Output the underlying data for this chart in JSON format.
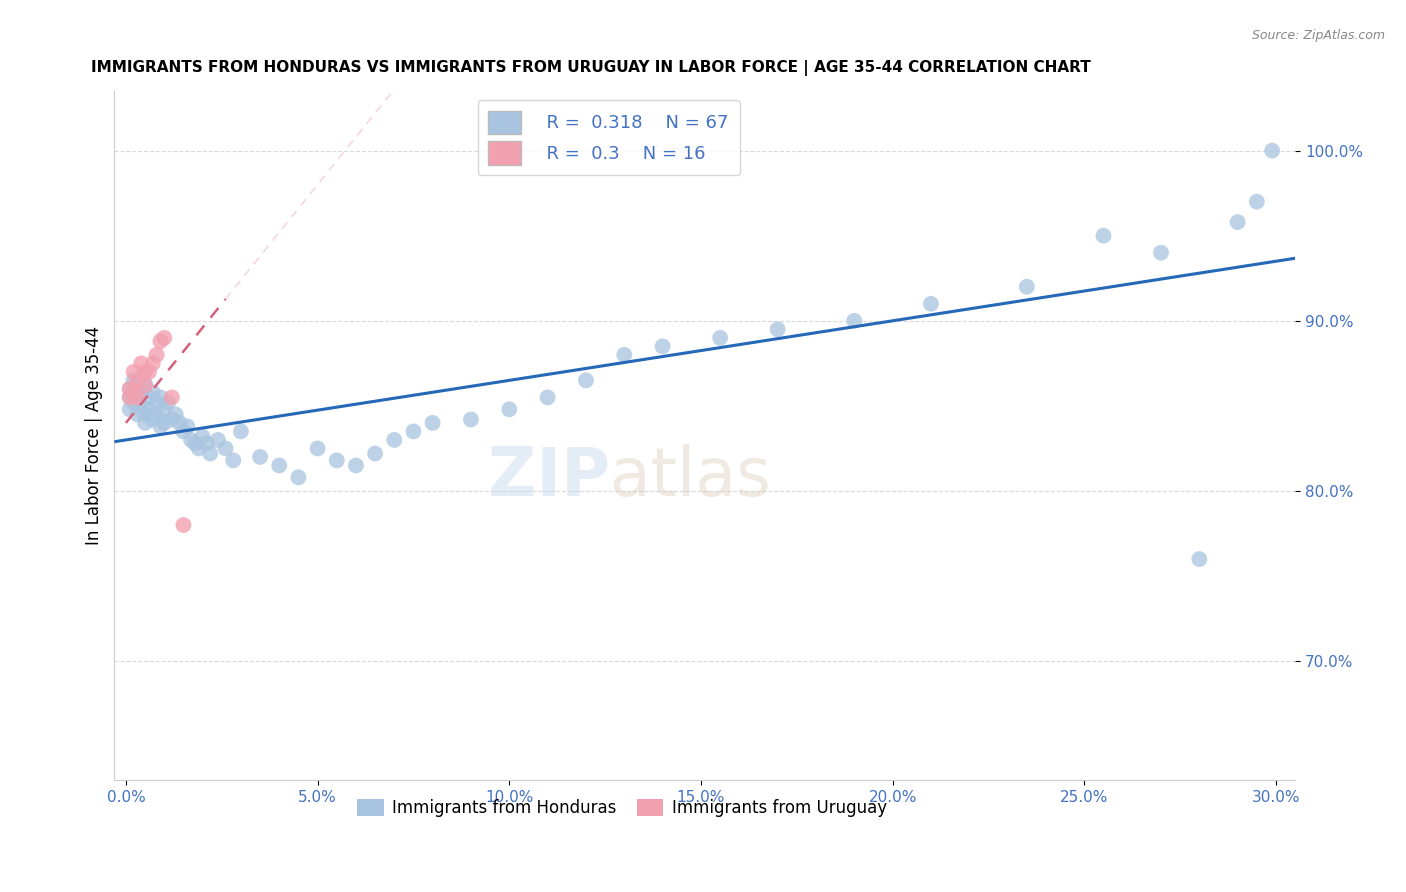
{
  "title": "IMMIGRANTS FROM HONDURAS VS IMMIGRANTS FROM URUGUAY IN LABOR FORCE | AGE 35-44 CORRELATION CHART",
  "source": "Source: ZipAtlas.com",
  "ylabel": "In Labor Force | Age 35-44",
  "xlim": [
    -0.003,
    0.305
  ],
  "ylim": [
    0.63,
    1.035
  ],
  "xticks": [
    0.0,
    0.05,
    0.1,
    0.15,
    0.2,
    0.25,
    0.3
  ],
  "xticklabels": [
    "0.0%",
    "5.0%",
    "10.0%",
    "15.0%",
    "20.0%",
    "25.0%",
    "30.0%"
  ],
  "yticks": [
    0.7,
    0.8,
    0.9,
    1.0
  ],
  "yticklabels": [
    "70.0%",
    "80.0%",
    "90.0%",
    "100.0%"
  ],
  "honduras_R": 0.318,
  "honduras_N": 67,
  "uruguay_R": 0.3,
  "uruguay_N": 16,
  "honduras_color": "#a8c4e0",
  "uruguay_color": "#f2a0b0",
  "honduras_line_color": "#2568b8",
  "uruguay_line_color": "#d4607a",
  "watermark": "ZIPatlas",
  "tick_color": "#4472c4",
  "grid_color": "#d0d0d0",
  "honduras_x": [
    0.001,
    0.001,
    0.001,
    0.002,
    0.002,
    0.002,
    0.003,
    0.003,
    0.003,
    0.004,
    0.004,
    0.005,
    0.005,
    0.005,
    0.006,
    0.006,
    0.007,
    0.007,
    0.008,
    0.008,
    0.009,
    0.009,
    0.01,
    0.01,
    0.011,
    0.012,
    0.013,
    0.014,
    0.015,
    0.016,
    0.017,
    0.018,
    0.019,
    0.02,
    0.021,
    0.022,
    0.024,
    0.026,
    0.028,
    0.03,
    0.035,
    0.04,
    0.045,
    0.05,
    0.055,
    0.06,
    0.065,
    0.07,
    0.075,
    0.08,
    0.09,
    0.1,
    0.11,
    0.12,
    0.13,
    0.14,
    0.155,
    0.17,
    0.19,
    0.21,
    0.235,
    0.255,
    0.27,
    0.28,
    0.29,
    0.295,
    0.299
  ],
  "honduras_y": [
    0.86,
    0.855,
    0.848,
    0.865,
    0.858,
    0.852,
    0.862,
    0.857,
    0.845,
    0.858,
    0.85,
    0.863,
    0.845,
    0.84,
    0.855,
    0.848,
    0.858,
    0.842,
    0.852,
    0.845,
    0.855,
    0.838,
    0.848,
    0.84,
    0.852,
    0.842,
    0.845,
    0.84,
    0.835,
    0.838,
    0.83,
    0.828,
    0.825,
    0.832,
    0.828,
    0.822,
    0.83,
    0.825,
    0.818,
    0.835,
    0.82,
    0.815,
    0.808,
    0.825,
    0.818,
    0.815,
    0.822,
    0.83,
    0.835,
    0.84,
    0.842,
    0.848,
    0.855,
    0.865,
    0.88,
    0.885,
    0.89,
    0.895,
    0.9,
    0.91,
    0.92,
    0.95,
    0.94,
    0.76,
    0.958,
    0.97,
    1.0
  ],
  "uruguay_x": [
    0.001,
    0.001,
    0.002,
    0.002,
    0.003,
    0.003,
    0.004,
    0.005,
    0.005,
    0.006,
    0.007,
    0.008,
    0.009,
    0.01,
    0.012,
    0.015
  ],
  "uruguay_y": [
    0.86,
    0.855,
    0.87,
    0.858,
    0.865,
    0.855,
    0.875,
    0.87,
    0.862,
    0.87,
    0.875,
    0.88,
    0.888,
    0.89,
    0.855,
    0.78
  ]
}
